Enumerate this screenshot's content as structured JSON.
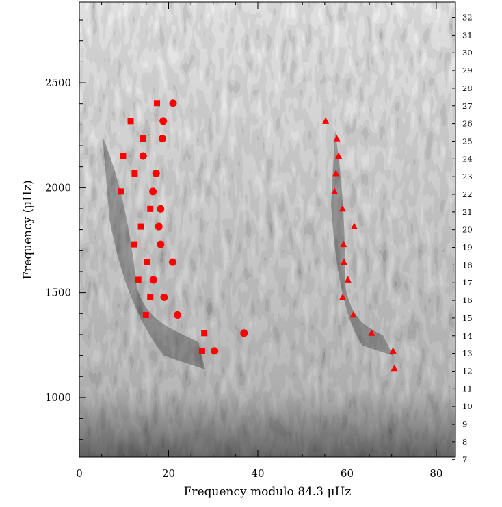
{
  "chart_data": {
    "type": "scatter",
    "xlabel_prefix": "Frequency modulo 84.3 ",
    "xlabel_unit": "μHz",
    "ylabel_prefix": "Frequency (",
    "ylabel_unit": "μHz",
    "ylabel_suffix": ")",
    "xlim": [
      0,
      84.3
    ],
    "ylim": [
      716,
      2885
    ],
    "xticks": [
      0,
      20,
      40,
      60,
      80
    ],
    "yticks": [
      1000,
      1500,
      2000,
      2500
    ],
    "x_minor_step": 5,
    "y_minor_step": 100,
    "right_axis_labels": [
      "7",
      "8",
      "9",
      "10",
      "11",
      "12",
      "13",
      "14",
      "15",
      "16",
      "17",
      "18",
      "19",
      "20",
      "21",
      "22",
      "23",
      "24",
      "25",
      "26",
      "27",
      "28",
      "29",
      "30",
      "31",
      "32"
    ],
    "right_axis_first_center": 704,
    "right_axis_step": 84.3,
    "background": "grayscale echelle power spectrum",
    "marker_color": "#ff0000",
    "series": [
      {
        "marker": "square",
        "points": [
          [
            17.4,
            2403
          ],
          [
            11.5,
            2318
          ],
          [
            14.3,
            2234
          ],
          [
            9.8,
            2151
          ],
          [
            12.4,
            2068
          ],
          [
            9.3,
            1982
          ],
          [
            15.9,
            1899
          ],
          [
            13.8,
            1815
          ],
          [
            12.3,
            1730
          ],
          [
            15.2,
            1645
          ],
          [
            13.2,
            1561
          ],
          [
            15.9,
            1478
          ],
          [
            14.9,
            1393
          ],
          [
            28.0,
            1307
          ],
          [
            27.5,
            1222
          ]
        ]
      },
      {
        "marker": "circle",
        "points": [
          [
            21.0,
            2403
          ],
          [
            18.8,
            2318
          ],
          [
            18.6,
            2234
          ],
          [
            14.3,
            2151
          ],
          [
            17.2,
            2068
          ],
          [
            16.5,
            1982
          ],
          [
            18.2,
            1899
          ],
          [
            17.8,
            1815
          ],
          [
            18.2,
            1730
          ],
          [
            20.9,
            1645
          ],
          [
            16.6,
            1561
          ],
          [
            19.0,
            1478
          ],
          [
            22.0,
            1393
          ],
          [
            36.9,
            1307
          ],
          [
            30.3,
            1222
          ]
        ]
      },
      {
        "marker": "triangle",
        "points": [
          [
            55.2,
            2318
          ],
          [
            57.7,
            2234
          ],
          [
            58.1,
            2151
          ],
          [
            57.5,
            2068
          ],
          [
            57.2,
            1982
          ],
          [
            59.0,
            1899
          ],
          [
            61.6,
            1815
          ],
          [
            59.2,
            1730
          ],
          [
            59.3,
            1645
          ],
          [
            60.2,
            1561
          ],
          [
            59.0,
            1478
          ],
          [
            61.4,
            1393
          ],
          [
            65.5,
            1307
          ],
          [
            70.3,
            1222
          ],
          [
            70.6,
            1139
          ]
        ]
      }
    ]
  }
}
